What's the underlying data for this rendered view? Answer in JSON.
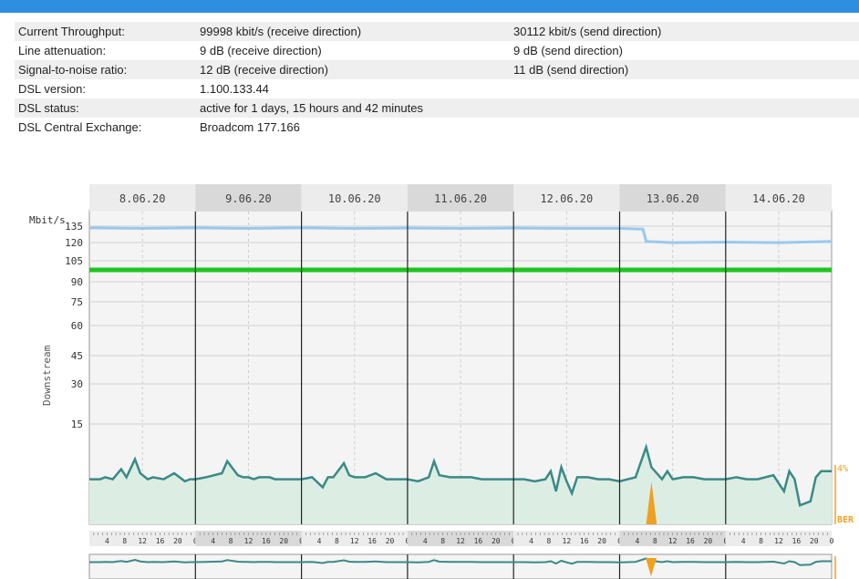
{
  "info_rows": [
    {
      "label": "Current Throughput:",
      "value": "99998 kbit/s (receive direction)",
      "value2": "30112 kbit/s (send direction)"
    },
    {
      "label": "Line attenuation:",
      "value": "9 dB (receive direction)",
      "value2": "9 dB (send direction)"
    },
    {
      "label": "Signal-to-noise ratio:",
      "value": "12 dB (receive direction)",
      "value2": "11 dB (send direction)"
    },
    {
      "label": "DSL version:",
      "value": "1.100.133.44",
      "value2": ""
    },
    {
      "label": "DSL status:",
      "value": "active for 1 days, 15 hours and 42 minutes",
      "value2": ""
    },
    {
      "label": "DSL Central Exchange:",
      "value": "Broadcom 177.166",
      "value2": ""
    }
  ],
  "chart_data": {
    "type": "line",
    "dates": [
      "8.06.20",
      "9.06.20",
      "10.06.20",
      "11.06.20",
      "12.06.20",
      "13.06.20",
      "14.06.20"
    ],
    "y_unit_label": "Mbit/s",
    "y_axis_label": "Downstream",
    "y_ticks": [
      135,
      120,
      105,
      90,
      75,
      60,
      45,
      30,
      15
    ],
    "hour_ticks": [
      "4",
      "8",
      "12",
      "16",
      "20",
      "0"
    ],
    "right_labels": {
      "percent": "4%",
      "ber": "BER"
    },
    "max_rate_series": {
      "x_days": [
        0.0,
        0.5,
        1.0,
        1.5,
        2.0,
        2.5,
        3.0,
        3.5,
        4.0,
        4.5,
        5.0,
        5.22,
        5.25,
        5.5,
        6.0,
        6.5,
        7.0
      ],
      "mbit": [
        134,
        133.5,
        134,
        133.5,
        134,
        133.5,
        133.8,
        133.5,
        133.8,
        133.5,
        133.5,
        133,
        123,
        122,
        122.5,
        122,
        123
      ]
    },
    "sync_rate_mbit": 100,
    "throughput_series": {
      "x_days": [
        0.0,
        0.1,
        0.15,
        0.22,
        0.3,
        0.35,
        0.43,
        0.48,
        0.55,
        0.6,
        0.7,
        0.8,
        0.9,
        0.95,
        1.0,
        1.1,
        1.25,
        1.3,
        1.4,
        1.45,
        1.5,
        1.55,
        1.6,
        1.7,
        1.75,
        1.8,
        1.9,
        2.0,
        2.1,
        2.2,
        2.25,
        2.3,
        2.4,
        2.45,
        2.5,
        2.6,
        2.7,
        2.8,
        2.9,
        3.0,
        3.1,
        3.2,
        3.25,
        3.3,
        3.4,
        3.45,
        3.5,
        3.6,
        3.7,
        3.8,
        3.9,
        4.0,
        4.1,
        4.2,
        4.3,
        4.35,
        4.4,
        4.45,
        4.5,
        4.55,
        4.6,
        4.7,
        4.8,
        4.9,
        5.0,
        5.15,
        5.25,
        5.3,
        5.4,
        5.45,
        5.5,
        5.6,
        5.7,
        5.8,
        5.9,
        6.0,
        6.1,
        6.2,
        6.3,
        6.45,
        6.55,
        6.6,
        6.65,
        6.7,
        6.8,
        6.85,
        6.9,
        7.0
      ],
      "mbit": [
        2,
        2,
        3,
        2,
        7,
        3,
        12,
        5,
        2,
        3,
        2,
        5,
        1,
        2,
        2,
        3,
        5,
        11,
        4,
        3,
        3,
        2,
        3,
        3,
        2,
        2,
        2,
        2,
        3,
        -2,
        3,
        3,
        10,
        4,
        3,
        3,
        5,
        2,
        2,
        2,
        1,
        3,
        11,
        4,
        3,
        3,
        3,
        3,
        2,
        2,
        2,
        2,
        2,
        1,
        2,
        6,
        -4,
        8,
        1,
        -5,
        3,
        3,
        2,
        2,
        1,
        3,
        18,
        8,
        2,
        6,
        2,
        3,
        3,
        2,
        2,
        2,
        3,
        2,
        2,
        4,
        -4,
        6,
        2,
        -11,
        -9,
        3,
        6,
        6
      ]
    },
    "ber_series": {
      "x_days": [
        5.25,
        5.3,
        5.35
      ],
      "value": [
        0,
        1,
        0
      ]
    }
  }
}
